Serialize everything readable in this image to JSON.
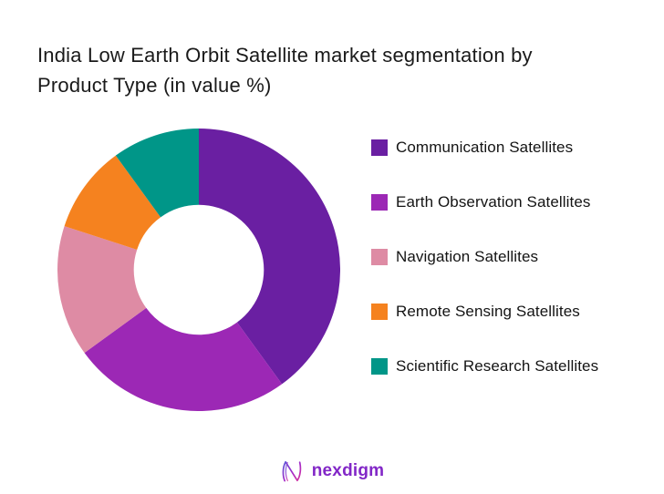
{
  "title": {
    "line1": "India Low Earth Orbit Satellite market segmentation by",
    "line2": "Product Type (in value %)"
  },
  "chart_data": {
    "type": "pie",
    "subtype": "donut",
    "title": "India Low Earth Orbit Satellite market segmentation by Product Type (in value %)",
    "categories": [
      "Communication Satellites",
      "Earth Observation Satellites",
      "Navigation Satellites",
      "Remote Sensing Satellites",
      "Scientific Research Satellites"
    ],
    "values": [
      40,
      25,
      15,
      10,
      10
    ],
    "unit": "%",
    "colors": [
      "#6A1FA2",
      "#9C28B5",
      "#DE8BA4",
      "#F5821F",
      "#009688"
    ],
    "start_angle_deg": 0,
    "direction": "clockwise",
    "inner_radius_ratio": 0.46,
    "legend_position": "right",
    "data_labels": "none"
  },
  "legend": {
    "items": [
      {
        "label": "Communication Satellites",
        "color": "#6A1FA2"
      },
      {
        "label": "Earth Observation Satellites",
        "color": "#9C28B5"
      },
      {
        "label": "Navigation Satellites",
        "color": "#DE8BA4"
      },
      {
        "label": "Remote Sensing Satellites",
        "color": "#F5821F"
      },
      {
        "label": "Scientific Research Satellites",
        "color": "#009688"
      }
    ]
  },
  "footer": {
    "brand": "nexdigm",
    "brand_color": "#8227c7",
    "icon": "nexdigm-wave-n-icon"
  }
}
